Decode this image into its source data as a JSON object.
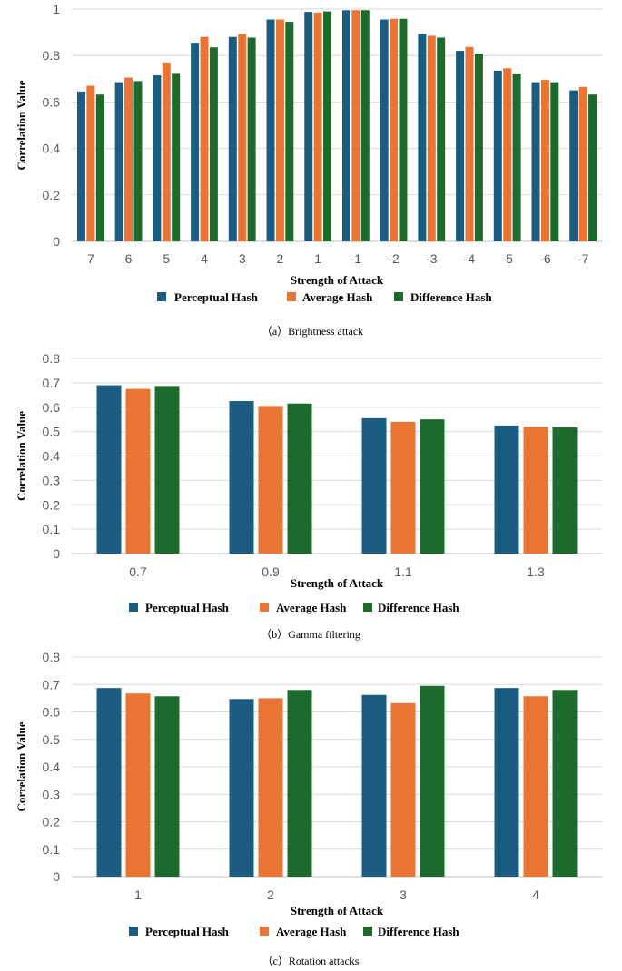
{
  "chart_data": [
    {
      "type": "bar",
      "caption": "（a）Brightness attack",
      "xlabel": "Strength of Attack",
      "ylabel": "Correlation Value",
      "ylim": [
        0,
        1
      ],
      "yticks": [
        "0",
        "0.2",
        "0.4",
        "0.6",
        "0.8",
        "1"
      ],
      "categories": [
        "7",
        "6",
        "5",
        "4",
        "3",
        "2",
        "1",
        "-1",
        "-2",
        "-3",
        "-4",
        "-5",
        "-6",
        "-7"
      ],
      "series": [
        {
          "name": "Perceptual Hash",
          "color": "#1a5d80",
          "values": [
            0.645,
            0.685,
            0.715,
            0.855,
            0.88,
            0.955,
            0.988,
            0.995,
            0.955,
            0.893,
            0.82,
            0.735,
            0.685,
            0.65
          ]
        },
        {
          "name": "Average Hash",
          "color": "#ea7434",
          "values": [
            0.67,
            0.705,
            0.77,
            0.88,
            0.892,
            0.955,
            0.985,
            0.995,
            0.958,
            0.885,
            0.837,
            0.745,
            0.695,
            0.665
          ]
        },
        {
          "name": "Difference Hash",
          "color": "#1d6b2c",
          "values": [
            0.632,
            0.69,
            0.725,
            0.835,
            0.877,
            0.945,
            0.99,
            0.995,
            0.958,
            0.877,
            0.808,
            0.722,
            0.685,
            0.632
          ]
        }
      ]
    },
    {
      "type": "bar",
      "caption": "（b）Gamma filtering",
      "xlabel": "Strength of Attack",
      "ylabel": "Correlation Value",
      "ylim": [
        0,
        0.8
      ],
      "yticks": [
        "0",
        "0.1",
        "0.2",
        "0.3",
        "0.4",
        "0.5",
        "0.6",
        "0.7",
        "0.8"
      ],
      "categories": [
        "0.7",
        "0.9",
        "1.1",
        "1.3"
      ],
      "series": [
        {
          "name": "Perceptual Hash",
          "color": "#1a5d80",
          "values": [
            0.69,
            0.625,
            0.555,
            0.525
          ]
        },
        {
          "name": "Average Hash",
          "color": "#ea7434",
          "values": [
            0.675,
            0.605,
            0.54,
            0.52
          ]
        },
        {
          "name": "Difference Hash",
          "color": "#1d6b2c",
          "values": [
            0.687,
            0.615,
            0.55,
            0.517
          ]
        }
      ]
    },
    {
      "type": "bar",
      "caption": "（c）Rotation attacks",
      "xlabel": "Strength of Attack",
      "ylabel": "Correlation Value",
      "ylim": [
        0,
        0.8
      ],
      "yticks": [
        "0",
        "0.1",
        "0.2",
        "0.3",
        "0.4",
        "0.5",
        "0.6",
        "0.7",
        "0.8"
      ],
      "categories": [
        "1",
        "2",
        "3",
        "4"
      ],
      "series": [
        {
          "name": "Perceptual Hash",
          "color": "#1a5d80",
          "values": [
            0.687,
            0.647,
            0.662,
            0.687
          ]
        },
        {
          "name": "Average Hash",
          "color": "#ea7434",
          "values": [
            0.667,
            0.65,
            0.632,
            0.657
          ]
        },
        {
          "name": "Difference Hash",
          "color": "#1d6b2c",
          "values": [
            0.657,
            0.68,
            0.695,
            0.68
          ]
        }
      ]
    }
  ]
}
